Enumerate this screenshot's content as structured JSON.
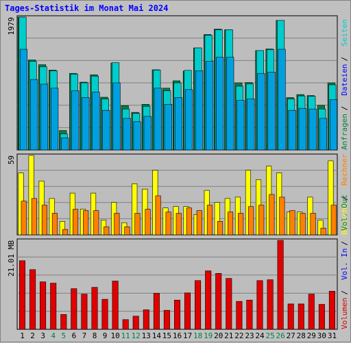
{
  "title": "Tages-Statistik im Monat Mai 2024",
  "colors": {
    "background": "#c0c0c0",
    "plot_bg": "#bdbdbd",
    "gridline": "#808080",
    "title": "#0000ff",
    "anfragen": "#008040",
    "dateien": "#00cccc",
    "seiten": "#00a0e0",
    "besuche": "#ffff00",
    "rechner": "#ff8000",
    "volumen": "#e00000",
    "weekend_day": "#008040",
    "weekday_day": "#000000"
  },
  "chart_data": [
    {
      "type": "bar",
      "name": "hits",
      "ymax_label": "1979",
      "ylim": [
        0,
        1979
      ],
      "right_labels": [
        {
          "text": "Anfragen",
          "color": "#008040"
        },
        {
          "text": "Dateien",
          "color": "#0000ff"
        },
        {
          "text": "Seiten",
          "color": "#00cccc"
        }
      ],
      "series": [
        {
          "name": "Anfragen",
          "color": "#008040",
          "values": [
            1979,
            1340,
            1270,
            1190,
            290,
            1140,
            1010,
            1120,
            785,
            1295,
            660,
            560,
            680,
            1195,
            920,
            1030,
            1175,
            1520,
            1720,
            1800,
            1790,
            1000,
            1005,
            1480,
            1505,
            1930,
            780,
            825,
            810,
            665,
            1000
          ]
        },
        {
          "name": "Dateien",
          "color": "#00cccc",
          "values": [
            1979,
            1320,
            1240,
            1180,
            240,
            1130,
            1000,
            1100,
            760,
            1300,
            610,
            545,
            650,
            1190,
            880,
            1000,
            1185,
            1520,
            1710,
            1790,
            1790,
            950,
            985,
            1480,
            1495,
            1930,
            760,
            805,
            800,
            610,
            970
          ]
        },
        {
          "name": "Seiten",
          "color": "#00a0e0",
          "values": [
            1500,
            1050,
            980,
            920,
            180,
            880,
            780,
            860,
            590,
            1000,
            470,
            420,
            500,
            920,
            680,
            780,
            900,
            1180,
            1320,
            1380,
            1380,
            740,
            760,
            1140,
            1160,
            1500,
            590,
            620,
            610,
            470,
            750
          ]
        }
      ]
    },
    {
      "type": "bar",
      "name": "visits",
      "ymax_label": "59",
      "ylim": [
        0,
        59
      ],
      "right_labels": [
        {
          "text": "Besuche",
          "color": "#ffff00"
        },
        {
          "text": "Rechner",
          "color": "#ff8000"
        }
      ],
      "series": [
        {
          "name": "Besuche",
          "color": "#ffff00",
          "values": [
            46,
            59,
            40,
            27,
            10,
            31,
            19,
            31,
            11,
            24,
            9,
            38,
            34,
            48,
            20,
            21,
            21,
            15,
            33,
            24,
            27,
            28,
            48,
            41,
            51,
            46,
            17,
            17,
            28,
            11,
            55
          ]
        },
        {
          "name": "Rechner",
          "color": "#ff8000",
          "values": [
            25,
            27,
            22,
            16,
            4,
            19,
            18,
            18,
            6,
            16,
            6,
            16,
            19,
            29,
            17,
            16,
            20,
            18,
            22,
            10,
            17,
            16,
            21,
            22,
            30,
            28,
            18,
            16,
            16,
            5,
            22
          ]
        }
      ]
    },
    {
      "type": "bar",
      "name": "volume",
      "ymax_label": "21.01 MB",
      "ylim": [
        0,
        21.01
      ],
      "right_labels": [
        {
          "text": "Volumen",
          "color": "#e00000"
        },
        {
          "text": "Vol. In",
          "color": "#0000ff"
        },
        {
          "text": "Vol. Out",
          "color": "#008040"
        }
      ],
      "series": [
        {
          "name": "Volumen",
          "color": "#e00000",
          "values": [
            16.2,
            14.1,
            11.2,
            10.9,
            3.5,
            9.6,
            8.3,
            9.9,
            7.1,
            11.4,
            2.3,
            3.1,
            4.6,
            8.5,
            4.5,
            6.9,
            8.6,
            11.5,
            13.8,
            13.2,
            12.0,
            6.6,
            6.9,
            11.5,
            11.7,
            21.0,
            6.0,
            6.0,
            8.3,
            5.9,
            9.0
          ]
        }
      ],
      "days": [
        "1",
        "2",
        "3",
        "4",
        "5",
        "6",
        "7",
        "8",
        "9",
        "10",
        "11",
        "12",
        "13",
        "14",
        "15",
        "16",
        "17",
        "18",
        "19",
        "20",
        "21",
        "22",
        "23",
        "24",
        "25",
        "26",
        "27",
        "28",
        "29",
        "30",
        "31"
      ],
      "weekend_days": [
        "4",
        "5",
        "11",
        "12",
        "18",
        "19",
        "25",
        "26"
      ]
    }
  ]
}
